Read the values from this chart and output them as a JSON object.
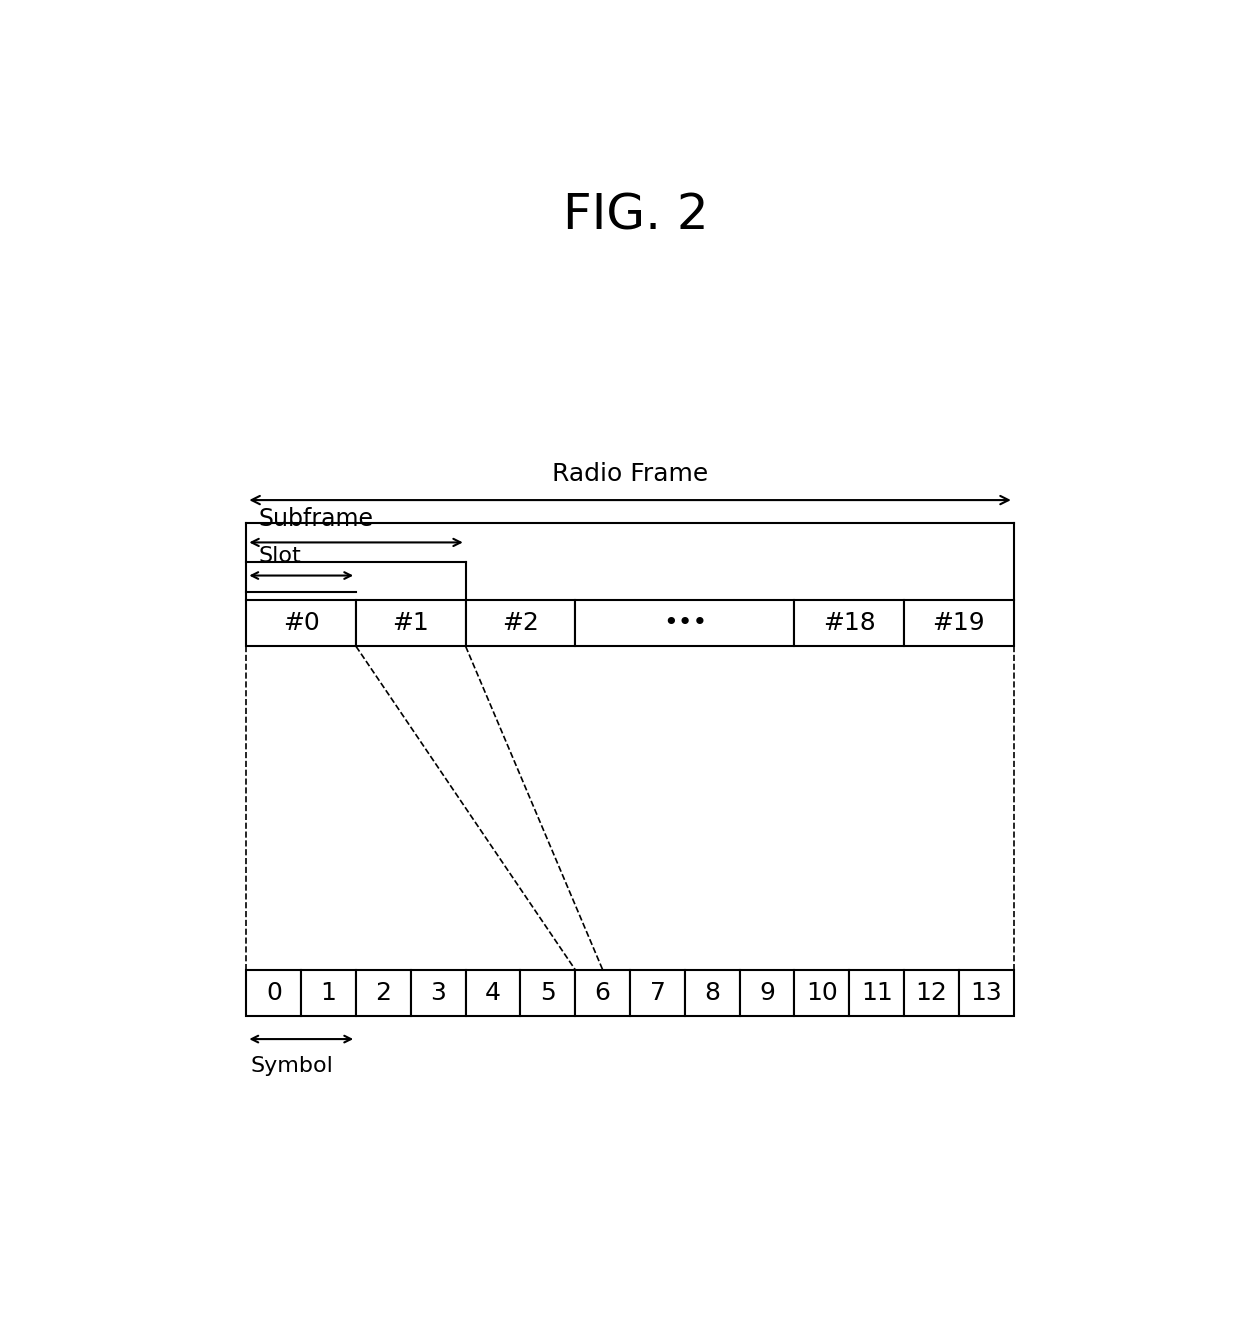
{
  "title": "FIG. 2",
  "title_fontsize": 36,
  "background_color": "#ffffff",
  "top_row_labels": [
    "#0",
    "#1",
    "#2",
    "•••",
    "#18",
    "#19"
  ],
  "top_row_widths": [
    1.5,
    1.5,
    1.5,
    3.0,
    1.5,
    1.5
  ],
  "bottom_row_labels": [
    "0",
    "1",
    "2",
    "3",
    "4",
    "5",
    "6",
    "7",
    "8",
    "9",
    "10",
    "11",
    "12",
    "13"
  ],
  "radio_frame_label": "Radio Frame",
  "subframe_label": "Subframe",
  "slot_label": "Slot",
  "symbol_label": "Symbol",
  "label_fontsize": 16,
  "cell_fontsize": 16
}
